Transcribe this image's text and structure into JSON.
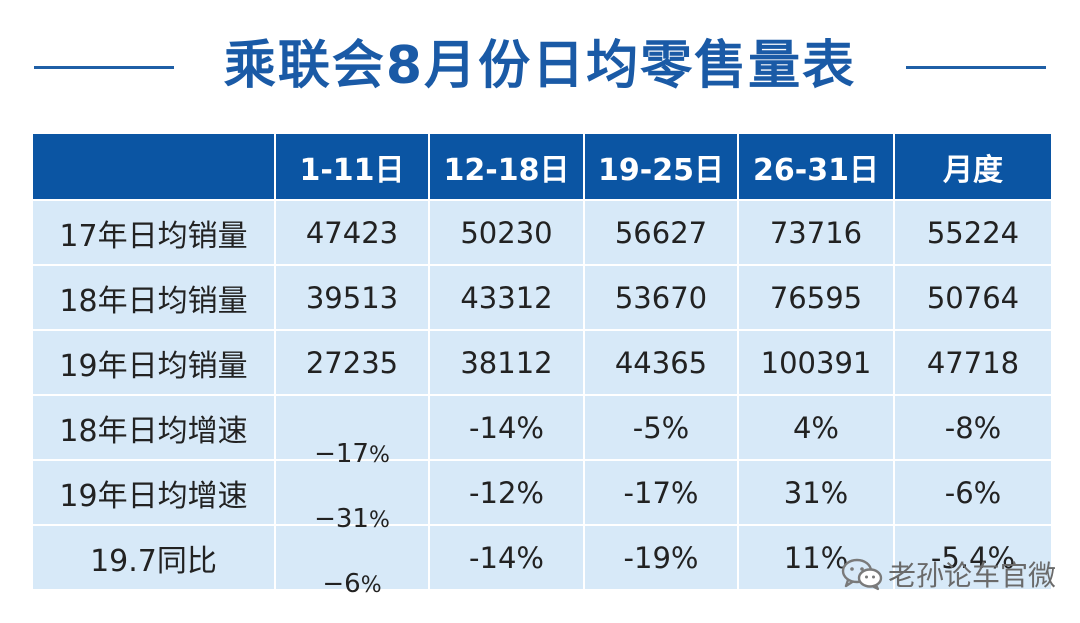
{
  "title": "乘联会8月份日均零售量表",
  "table": {
    "header": [
      "",
      "1-11日",
      "12-18日",
      "19-25日",
      "26-31日",
      "月度"
    ],
    "rows": [
      {
        "label": "17年日均销量",
        "cells": [
          "47423",
          "50230",
          "56627",
          "73716",
          "55224"
        ]
      },
      {
        "label": "18年日均销量",
        "cells": [
          "39513",
          "43312",
          "53670",
          "76595",
          "50764"
        ]
      },
      {
        "label": "19年日均销量",
        "cells": [
          "27235",
          "38112",
          "44365",
          "100391",
          "47718"
        ]
      },
      {
        "label": "18年日均增速",
        "first_num": "−17",
        "first_pct": "%",
        "cells": [
          "-14%",
          "-5%",
          "4%",
          "-8%"
        ]
      },
      {
        "label": "19年日均增速",
        "first_num": "−31",
        "first_pct": "%",
        "cells": [
          "-12%",
          "-17%",
          "31%",
          "-6%"
        ]
      },
      {
        "label": "19.7同比",
        "first_num": "−6",
        "first_pct": "%",
        "cells": [
          "-14%",
          "-19%",
          "11%",
          "-5.4%"
        ]
      }
    ]
  },
  "watermark": {
    "icon": "wechat-icon",
    "text": "老孙论车官微"
  }
}
